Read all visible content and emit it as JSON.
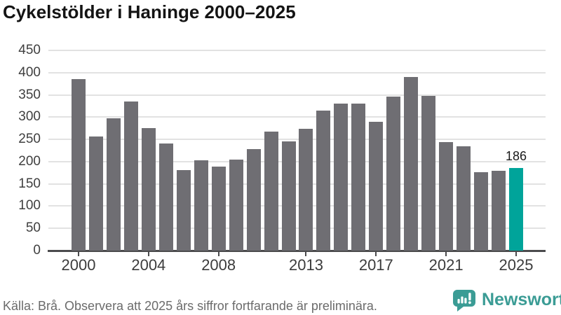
{
  "title": "Cykelstölder i Haninge 2000–2025",
  "chart_data": {
    "type": "bar",
    "x": [
      2000,
      2001,
      2002,
      2003,
      2004,
      2005,
      2006,
      2007,
      2008,
      2009,
      2010,
      2011,
      2012,
      2013,
      2014,
      2015,
      2016,
      2017,
      2018,
      2019,
      2020,
      2021,
      2022,
      2023,
      2024,
      2025
    ],
    "values": [
      385,
      256,
      297,
      335,
      275,
      240,
      181,
      203,
      189,
      204,
      228,
      267,
      245,
      273,
      314,
      331,
      331,
      290,
      346,
      390,
      347,
      244,
      234,
      177,
      179,
      186
    ],
    "highlight_year": 2025,
    "highlight_label": "186",
    "title": "Cykelstölder i Haninge 2000–2025",
    "xlabel": "",
    "ylabel": "",
    "ylim": [
      0,
      450
    ],
    "yticks": [
      0,
      50,
      100,
      150,
      200,
      250,
      300,
      350,
      400,
      450
    ],
    "xticks": [
      2000,
      2004,
      2008,
      2013,
      2017,
      2021,
      2025
    ],
    "grid": true,
    "legend_position": "none",
    "bar_color": "#6f6e73",
    "highlight_color": "#00a49a"
  },
  "footer": {
    "source": "Källa: Brå. Observera att 2025 års siffror fortfarande är preliminära."
  },
  "branding": {
    "name": "Newsworthy",
    "logo_icon": "bar-chart-speech-bubble-icon",
    "color": "#3b9c95"
  }
}
